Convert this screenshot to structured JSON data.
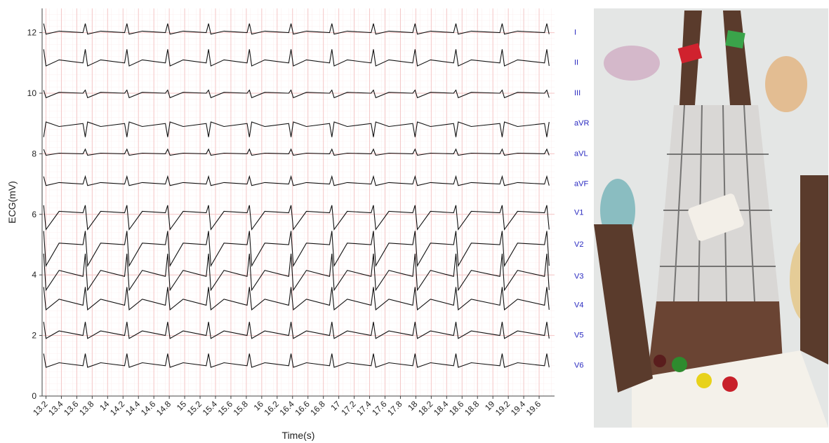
{
  "chart_data": {
    "type": "line",
    "xlabel": "Time(s)",
    "ylabel": "ECG(mV)",
    "xlim": [
      13.15,
      19.8
    ],
    "ylim": [
      0,
      12.8
    ],
    "xticks": [
      13.2,
      13.4,
      13.6,
      13.8,
      14,
      14.2,
      14.4,
      14.6,
      14.8,
      15,
      15.2,
      15.4,
      15.6,
      15.8,
      16,
      16.2,
      16.4,
      16.6,
      16.8,
      17,
      17.2,
      17.4,
      17.6,
      17.8,
      18,
      18.2,
      18.4,
      18.6,
      18.8,
      19,
      19.2,
      19.4,
      19.6
    ],
    "yticks": [
      0,
      2,
      4,
      6,
      8,
      10,
      12
    ],
    "grid": true,
    "line_color": "#111111",
    "grid_color": "#f4c6c6",
    "x": [
      13.17,
      13.2,
      13.37,
      13.68,
      13.71,
      13.74,
      13.91,
      14.22,
      14.25,
      14.28,
      14.45,
      14.75,
      14.78,
      14.81,
      14.98,
      15.28,
      15.31,
      15.34,
      15.51,
      15.81,
      15.84,
      15.87,
      16.04,
      16.35,
      16.38,
      16.41,
      16.58,
      16.88,
      16.91,
      16.94,
      17.11,
      17.42,
      17.45,
      17.48,
      17.65,
      17.96,
      17.99,
      18.02,
      18.19,
      18.49,
      18.52,
      18.55,
      18.72,
      19.09,
      19.12,
      19.15,
      19.32,
      19.67,
      19.7,
      19.73
    ],
    "series": [
      {
        "name": "I",
        "values": [
          12.3,
          11.95,
          12.05,
          12,
          12.3,
          11.95,
          12.05,
          12,
          12.3,
          11.95,
          12.05,
          12,
          12.3,
          11.95,
          12.05,
          12,
          12.3,
          11.95,
          12.05,
          12,
          12.3,
          11.95,
          12.05,
          12,
          12.3,
          11.95,
          12.05,
          12,
          12.3,
          11.95,
          12.05,
          12,
          12.3,
          11.95,
          12.05,
          12,
          12.3,
          11.95,
          12.05,
          12,
          12.3,
          11.95,
          12.05,
          12,
          12.3,
          11.95,
          12.05,
          12,
          12.3,
          11.95
        ]
      },
      {
        "name": "II",
        "values": [
          11.45,
          10.9,
          11.1,
          11,
          11.45,
          10.9,
          11.1,
          11,
          11.45,
          10.9,
          11.1,
          11,
          11.45,
          10.9,
          11.1,
          11,
          11.45,
          10.9,
          11.1,
          11,
          11.45,
          10.9,
          11.1,
          11,
          11.45,
          10.9,
          11.1,
          11,
          11.45,
          10.9,
          11.1,
          11,
          11.45,
          10.9,
          11.1,
          11,
          11.45,
          10.9,
          11.1,
          11,
          11.45,
          10.9,
          11.1,
          11,
          11.45,
          10.9,
          11.1,
          11,
          11.45,
          10.9
        ]
      },
      {
        "name": "III",
        "values": [
          10.1,
          9.85,
          10.03,
          10,
          10.1,
          9.85,
          10.03,
          10,
          10.1,
          9.85,
          10.03,
          10,
          10.1,
          9.85,
          10.03,
          10,
          10.1,
          9.85,
          10.03,
          10,
          10.1,
          9.85,
          10.03,
          10,
          10.1,
          9.85,
          10.03,
          10,
          10.1,
          9.85,
          10.03,
          10,
          10.1,
          9.85,
          10.03,
          10,
          10.1,
          9.85,
          10.03,
          10,
          10.1,
          9.85,
          10.03,
          10,
          10.1,
          9.85,
          10.03,
          10,
          10.1,
          9.85
        ]
      },
      {
        "name": "aVR",
        "values": [
          8.55,
          9.05,
          8.9,
          9,
          8.55,
          9.05,
          8.9,
          9,
          8.55,
          9.05,
          8.9,
          9,
          8.55,
          9.05,
          8.9,
          9,
          8.55,
          9.05,
          8.9,
          9,
          8.55,
          9.05,
          8.9,
          9,
          8.55,
          9.05,
          8.9,
          9,
          8.55,
          9.05,
          8.9,
          9,
          8.55,
          9.05,
          8.9,
          9,
          8.55,
          9.05,
          8.9,
          9,
          8.55,
          9.05,
          8.9,
          9,
          8.55,
          9.05,
          8.9,
          9,
          8.55,
          9.05
        ]
      },
      {
        "name": "aVL",
        "values": [
          8.15,
          7.95,
          8.02,
          8,
          8.15,
          7.95,
          8.02,
          8,
          8.15,
          7.95,
          8.02,
          8,
          8.15,
          7.95,
          8.02,
          8,
          8.15,
          7.95,
          8.02,
          8,
          8.15,
          7.95,
          8.02,
          8,
          8.15,
          7.95,
          8.02,
          8,
          8.15,
          7.95,
          8.02,
          8,
          8.15,
          7.95,
          8.02,
          8,
          8.15,
          7.95,
          8.02,
          8,
          8.15,
          7.95,
          8.02,
          8,
          8.15,
          7.95,
          8.02,
          8,
          8.15,
          7.95
        ]
      },
      {
        "name": "aVF",
        "values": [
          7.25,
          6.95,
          7.05,
          7,
          7.25,
          6.95,
          7.05,
          7,
          7.25,
          6.95,
          7.05,
          7,
          7.25,
          6.95,
          7.05,
          7,
          7.25,
          6.95,
          7.05,
          7,
          7.25,
          6.95,
          7.05,
          7,
          7.25,
          6.95,
          7.05,
          7,
          7.25,
          6.95,
          7.05,
          7,
          7.25,
          6.95,
          7.05,
          7,
          7.25,
          6.95,
          7.05,
          7,
          7.25,
          6.95,
          7.05,
          7,
          7.25,
          6.95,
          7.05,
          7,
          7.25,
          6.95
        ]
      },
      {
        "name": "V1",
        "values": [
          6.3,
          5.5,
          6.1,
          6.05,
          6.3,
          5.5,
          6.1,
          6.05,
          6.3,
          5.5,
          6.1,
          6.05,
          6.3,
          5.5,
          6.1,
          6.05,
          6.3,
          5.5,
          6.1,
          6.05,
          6.3,
          5.5,
          6.1,
          6.05,
          6.3,
          5.5,
          6.1,
          6.05,
          6.3,
          5.5,
          6.1,
          6.05,
          6.3,
          5.5,
          6.1,
          6.05,
          6.3,
          5.5,
          6.1,
          6.05,
          6.3,
          5.5,
          6.1,
          6.05,
          6.3,
          5.5,
          6.1,
          6.05,
          6.3,
          5.5
        ]
      },
      {
        "name": "V2",
        "values": [
          5.45,
          4.3,
          5.05,
          5,
          5.45,
          4.3,
          5.05,
          5,
          5.45,
          4.3,
          5.05,
          5,
          5.45,
          4.3,
          5.05,
          5,
          5.45,
          4.3,
          5.05,
          5,
          5.45,
          4.3,
          5.05,
          5,
          5.45,
          4.3,
          5.05,
          5,
          5.45,
          4.3,
          5.05,
          5,
          5.45,
          4.3,
          5.05,
          5,
          5.45,
          4.3,
          5.05,
          5,
          5.45,
          4.3,
          5.05,
          5,
          5.45,
          4.3,
          5.05,
          5,
          5.45,
          4.3
        ]
      },
      {
        "name": "V3",
        "values": [
          4.7,
          3.5,
          4.15,
          3.95,
          4.7,
          3.5,
          4.15,
          3.95,
          4.7,
          3.5,
          4.15,
          3.95,
          4.7,
          3.5,
          4.15,
          3.95,
          4.7,
          3.5,
          4.15,
          3.95,
          4.7,
          3.5,
          4.15,
          3.95,
          4.7,
          3.5,
          4.15,
          3.95,
          4.7,
          3.5,
          4.15,
          3.95,
          4.7,
          3.5,
          4.15,
          3.95,
          4.7,
          3.5,
          4.15,
          3.95,
          4.7,
          3.5,
          4.15,
          3.95,
          4.7,
          3.5,
          4.15,
          3.95,
          4.7,
          3.5
        ]
      },
      {
        "name": "V4",
        "values": [
          3.6,
          2.85,
          3.2,
          3,
          3.6,
          2.85,
          3.2,
          3,
          3.6,
          2.85,
          3.2,
          3,
          3.6,
          2.85,
          3.2,
          3,
          3.6,
          2.85,
          3.2,
          3,
          3.6,
          2.85,
          3.2,
          3,
          3.6,
          2.85,
          3.2,
          3,
          3.6,
          2.85,
          3.2,
          3,
          3.6,
          2.85,
          3.2,
          3,
          3.6,
          2.85,
          3.2,
          3,
          3.6,
          2.85,
          3.2,
          3,
          3.6,
          2.85,
          3.2,
          3,
          3.6,
          2.85
        ]
      },
      {
        "name": "V5",
        "values": [
          2.45,
          1.9,
          2.15,
          2,
          2.45,
          1.9,
          2.15,
          2,
          2.45,
          1.9,
          2.15,
          2,
          2.45,
          1.9,
          2.15,
          2,
          2.45,
          1.9,
          2.15,
          2,
          2.45,
          1.9,
          2.15,
          2,
          2.45,
          1.9,
          2.15,
          2,
          2.45,
          1.9,
          2.15,
          2,
          2.45,
          1.9,
          2.15,
          2,
          2.45,
          1.9,
          2.15,
          2,
          2.45,
          1.9,
          2.15,
          2,
          2.45,
          1.9,
          2.15,
          2,
          2.45,
          1.9
        ]
      },
      {
        "name": "V6",
        "values": [
          1.4,
          0.95,
          1.1,
          1,
          1.4,
          0.95,
          1.1,
          1,
          1.4,
          0.95,
          1.1,
          1,
          1.4,
          0.95,
          1.1,
          1,
          1.4,
          0.95,
          1.1,
          1,
          1.4,
          0.95,
          1.1,
          1,
          1.4,
          0.95,
          1.1,
          1,
          1.4,
          0.95,
          1.1,
          1,
          1.4,
          0.95,
          1.1,
          1,
          1.4,
          0.95,
          1.1,
          1,
          1.4,
          0.95,
          1.1,
          1,
          1.4,
          0.95,
          1.1,
          1,
          1.4,
          0.95
        ]
      }
    ]
  }
}
